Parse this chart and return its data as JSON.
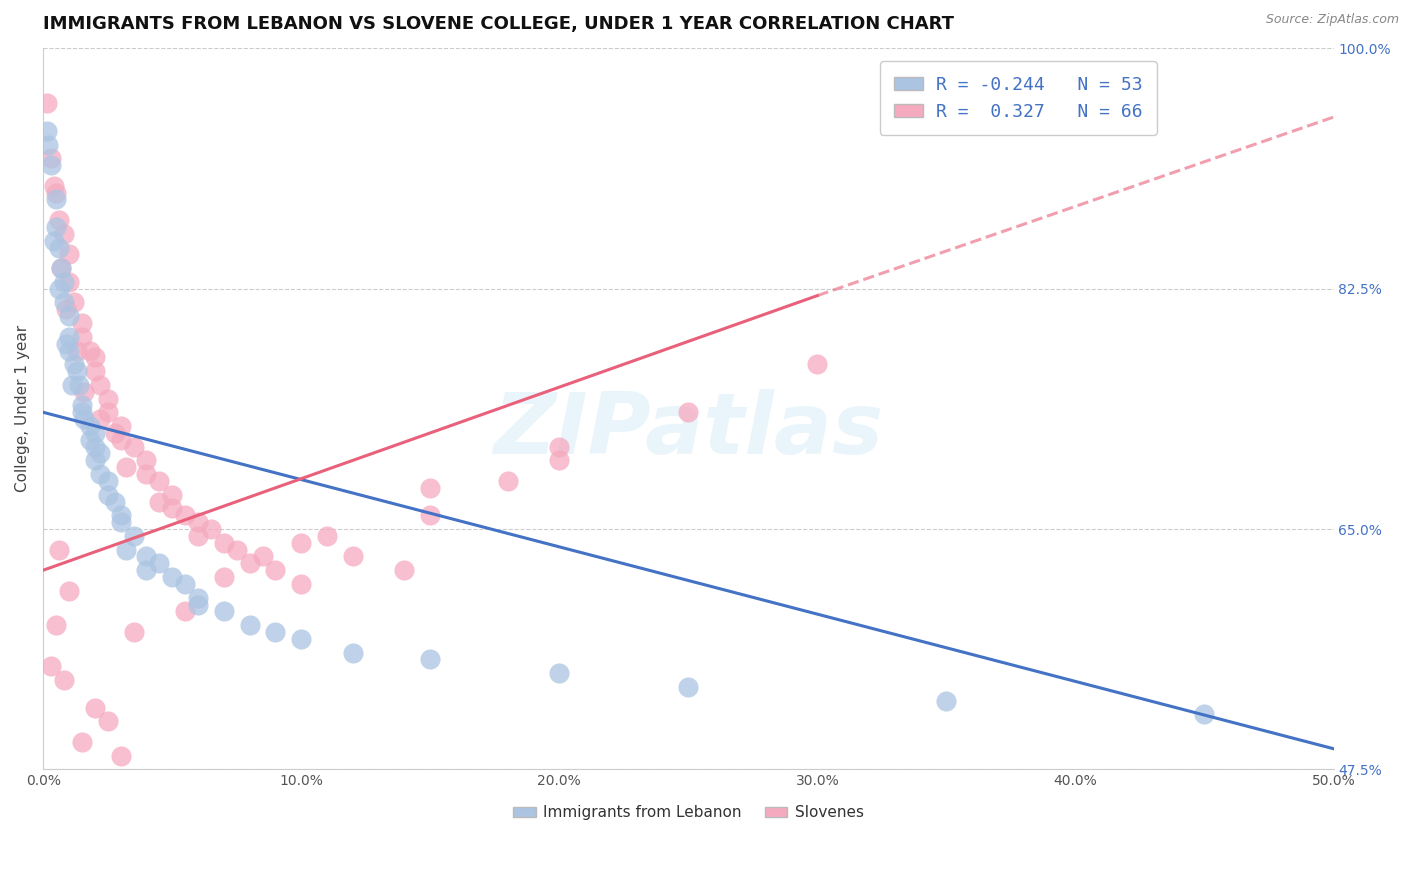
{
  "title": "IMMIGRANTS FROM LEBANON VS SLOVENE COLLEGE, UNDER 1 YEAR CORRELATION CHART",
  "source": "Source: ZipAtlas.com",
  "ylabel": "College, Under 1 year",
  "xlim": [
    0.0,
    50.0
  ],
  "ylim": [
    47.5,
    100.0
  ],
  "xticks": [
    0.0,
    10.0,
    20.0,
    30.0,
    40.0,
    50.0
  ],
  "yticks": [
    47.5,
    65.0,
    82.5,
    100.0
  ],
  "xticklabels": [
    "0.0%",
    "10.0%",
    "20.0%",
    "30.0%",
    "40.0%",
    "50.0%"
  ],
  "yticklabels": [
    "47.5%",
    "65.0%",
    "82.5%",
    "100.0%"
  ],
  "blue_R": -0.244,
  "blue_N": 53,
  "pink_R": 0.327,
  "pink_N": 66,
  "blue_dot_color": "#aac4e2",
  "pink_dot_color": "#f5aabf",
  "blue_line_color": "#4472c4",
  "pink_line_color": "#e8607a",
  "legend_label_blue": "Immigrants from Lebanon",
  "legend_label_pink": "Slovenes",
  "watermark": "ZIPatlas",
  "title_fontsize": 13,
  "axis_label_fontsize": 11,
  "tick_fontsize": 10,
  "blue_line_x0": 0.0,
  "blue_line_y0": 73.5,
  "blue_line_x1": 50.0,
  "blue_line_y1": 49.0,
  "pink_line_solid_x0": 0.0,
  "pink_line_solid_y0": 62.0,
  "pink_line_solid_x1": 30.0,
  "pink_line_solid_y1": 82.0,
  "pink_line_dash_x0": 30.0,
  "pink_line_dash_y0": 82.0,
  "pink_line_dash_x1": 50.0,
  "pink_line_dash_y1": 95.0,
  "blue_scatter_x": [
    0.15,
    0.3,
    0.5,
    0.5,
    0.6,
    0.7,
    0.8,
    0.8,
    1.0,
    1.0,
    1.0,
    1.2,
    1.3,
    1.4,
    1.5,
    1.6,
    1.8,
    2.0,
    2.0,
    2.2,
    2.5,
    2.5,
    2.8,
    3.0,
    3.0,
    3.5,
    4.0,
    4.5,
    5.0,
    5.5,
    6.0,
    7.0,
    8.0,
    9.0,
    10.0,
    12.0,
    15.0,
    20.0,
    25.0,
    35.0,
    45.0,
    0.2,
    0.4,
    0.6,
    0.9,
    1.1,
    1.5,
    2.2,
    3.2,
    4.0,
    6.0,
    2.0,
    1.8
  ],
  "blue_scatter_y": [
    94.0,
    91.5,
    89.0,
    87.0,
    85.5,
    84.0,
    83.0,
    81.5,
    80.5,
    79.0,
    78.0,
    77.0,
    76.5,
    75.5,
    74.0,
    73.0,
    72.5,
    71.0,
    70.0,
    69.0,
    68.5,
    67.5,
    67.0,
    66.0,
    65.5,
    64.5,
    63.0,
    62.5,
    61.5,
    61.0,
    60.0,
    59.0,
    58.0,
    57.5,
    57.0,
    56.0,
    55.5,
    54.5,
    53.5,
    52.5,
    51.5,
    93.0,
    86.0,
    82.5,
    78.5,
    75.5,
    73.5,
    70.5,
    63.5,
    62.0,
    59.5,
    72.0,
    71.5
  ],
  "pink_scatter_x": [
    0.15,
    0.3,
    0.5,
    0.6,
    0.8,
    1.0,
    1.0,
    1.2,
    1.5,
    1.5,
    1.8,
    2.0,
    2.0,
    2.2,
    2.5,
    2.5,
    3.0,
    3.0,
    3.5,
    4.0,
    4.0,
    4.5,
    5.0,
    5.0,
    5.5,
    6.0,
    6.0,
    7.0,
    7.5,
    8.0,
    9.0,
    10.0,
    11.0,
    12.0,
    14.0,
    15.0,
    18.0,
    20.0,
    25.0,
    30.0,
    0.4,
    0.7,
    0.9,
    1.3,
    1.6,
    2.2,
    2.8,
    3.2,
    4.5,
    6.5,
    8.5,
    1.0,
    0.5,
    0.3,
    0.8,
    2.0,
    3.5,
    5.5,
    7.0,
    10.0,
    15.0,
    20.0,
    1.5,
    2.5,
    0.6,
    3.0
  ],
  "pink_scatter_y": [
    96.0,
    92.0,
    89.5,
    87.5,
    86.5,
    85.0,
    83.0,
    81.5,
    80.0,
    79.0,
    78.0,
    77.5,
    76.5,
    75.5,
    74.5,
    73.5,
    72.5,
    71.5,
    71.0,
    70.0,
    69.0,
    68.5,
    67.5,
    66.5,
    66.0,
    65.5,
    64.5,
    64.0,
    63.5,
    62.5,
    62.0,
    61.0,
    64.5,
    63.0,
    62.0,
    66.0,
    68.5,
    70.0,
    73.5,
    77.0,
    90.0,
    84.0,
    81.0,
    78.0,
    75.0,
    73.0,
    72.0,
    69.5,
    67.0,
    65.0,
    63.0,
    60.5,
    58.0,
    55.0,
    54.0,
    52.0,
    57.5,
    59.0,
    61.5,
    64.0,
    68.0,
    71.0,
    49.5,
    51.0,
    63.5,
    48.5
  ]
}
